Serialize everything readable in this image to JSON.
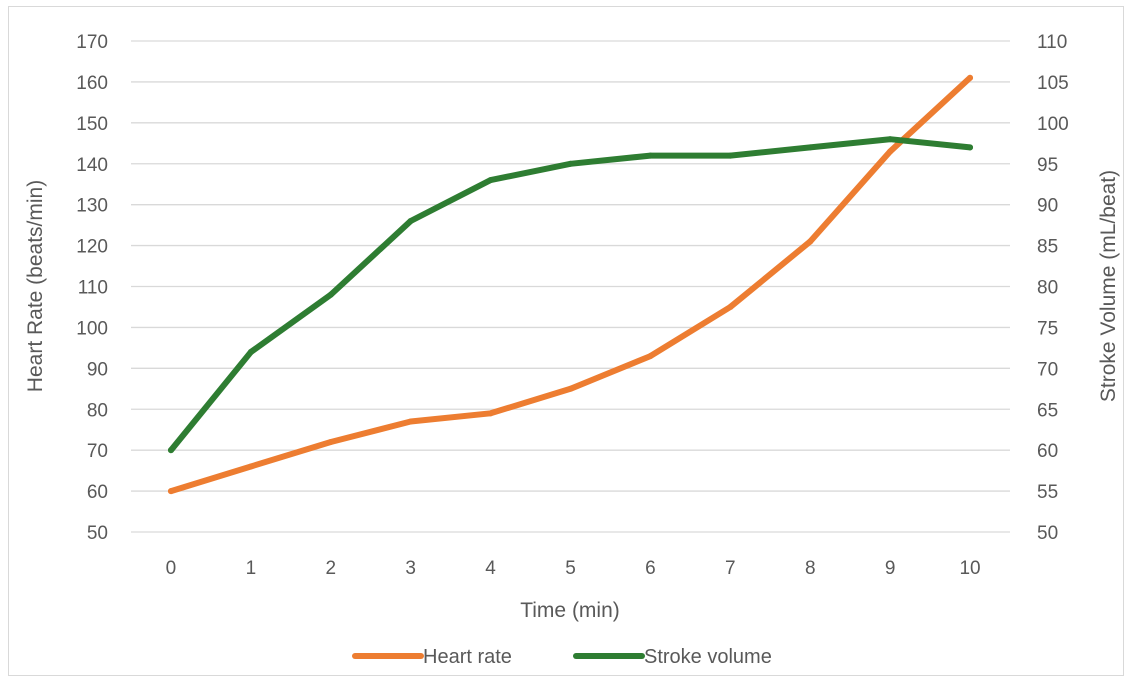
{
  "chart_data": {
    "type": "line",
    "title": "",
    "xlabel": "Time (min)",
    "ylabel": "Heart Rate (beats/min)",
    "y2label": "Stroke Volume (mL/beat)",
    "x": [
      0,
      1,
      2,
      3,
      4,
      5,
      6,
      7,
      8,
      9,
      10
    ],
    "ylim": [
      50,
      170
    ],
    "y2lim": [
      50,
      110
    ],
    "yticks": [
      50,
      60,
      70,
      80,
      90,
      100,
      110,
      120,
      130,
      140,
      150,
      160,
      170
    ],
    "y2ticks": [
      50,
      55,
      60,
      65,
      70,
      75,
      80,
      85,
      90,
      95,
      100,
      105,
      110
    ],
    "grid": true,
    "legend_position": "bottom",
    "series": [
      {
        "name": "Heart rate",
        "axis": "left",
        "color": "#ED7D31",
        "values": [
          60,
          66,
          72,
          77,
          79,
          85,
          93,
          105,
          121,
          143,
          161
        ]
      },
      {
        "name": "Stroke volume",
        "axis": "right",
        "color": "#2E7D32",
        "values": [
          60,
          72,
          79,
          88,
          93,
          95,
          96,
          96,
          97,
          98,
          97
        ]
      }
    ]
  }
}
